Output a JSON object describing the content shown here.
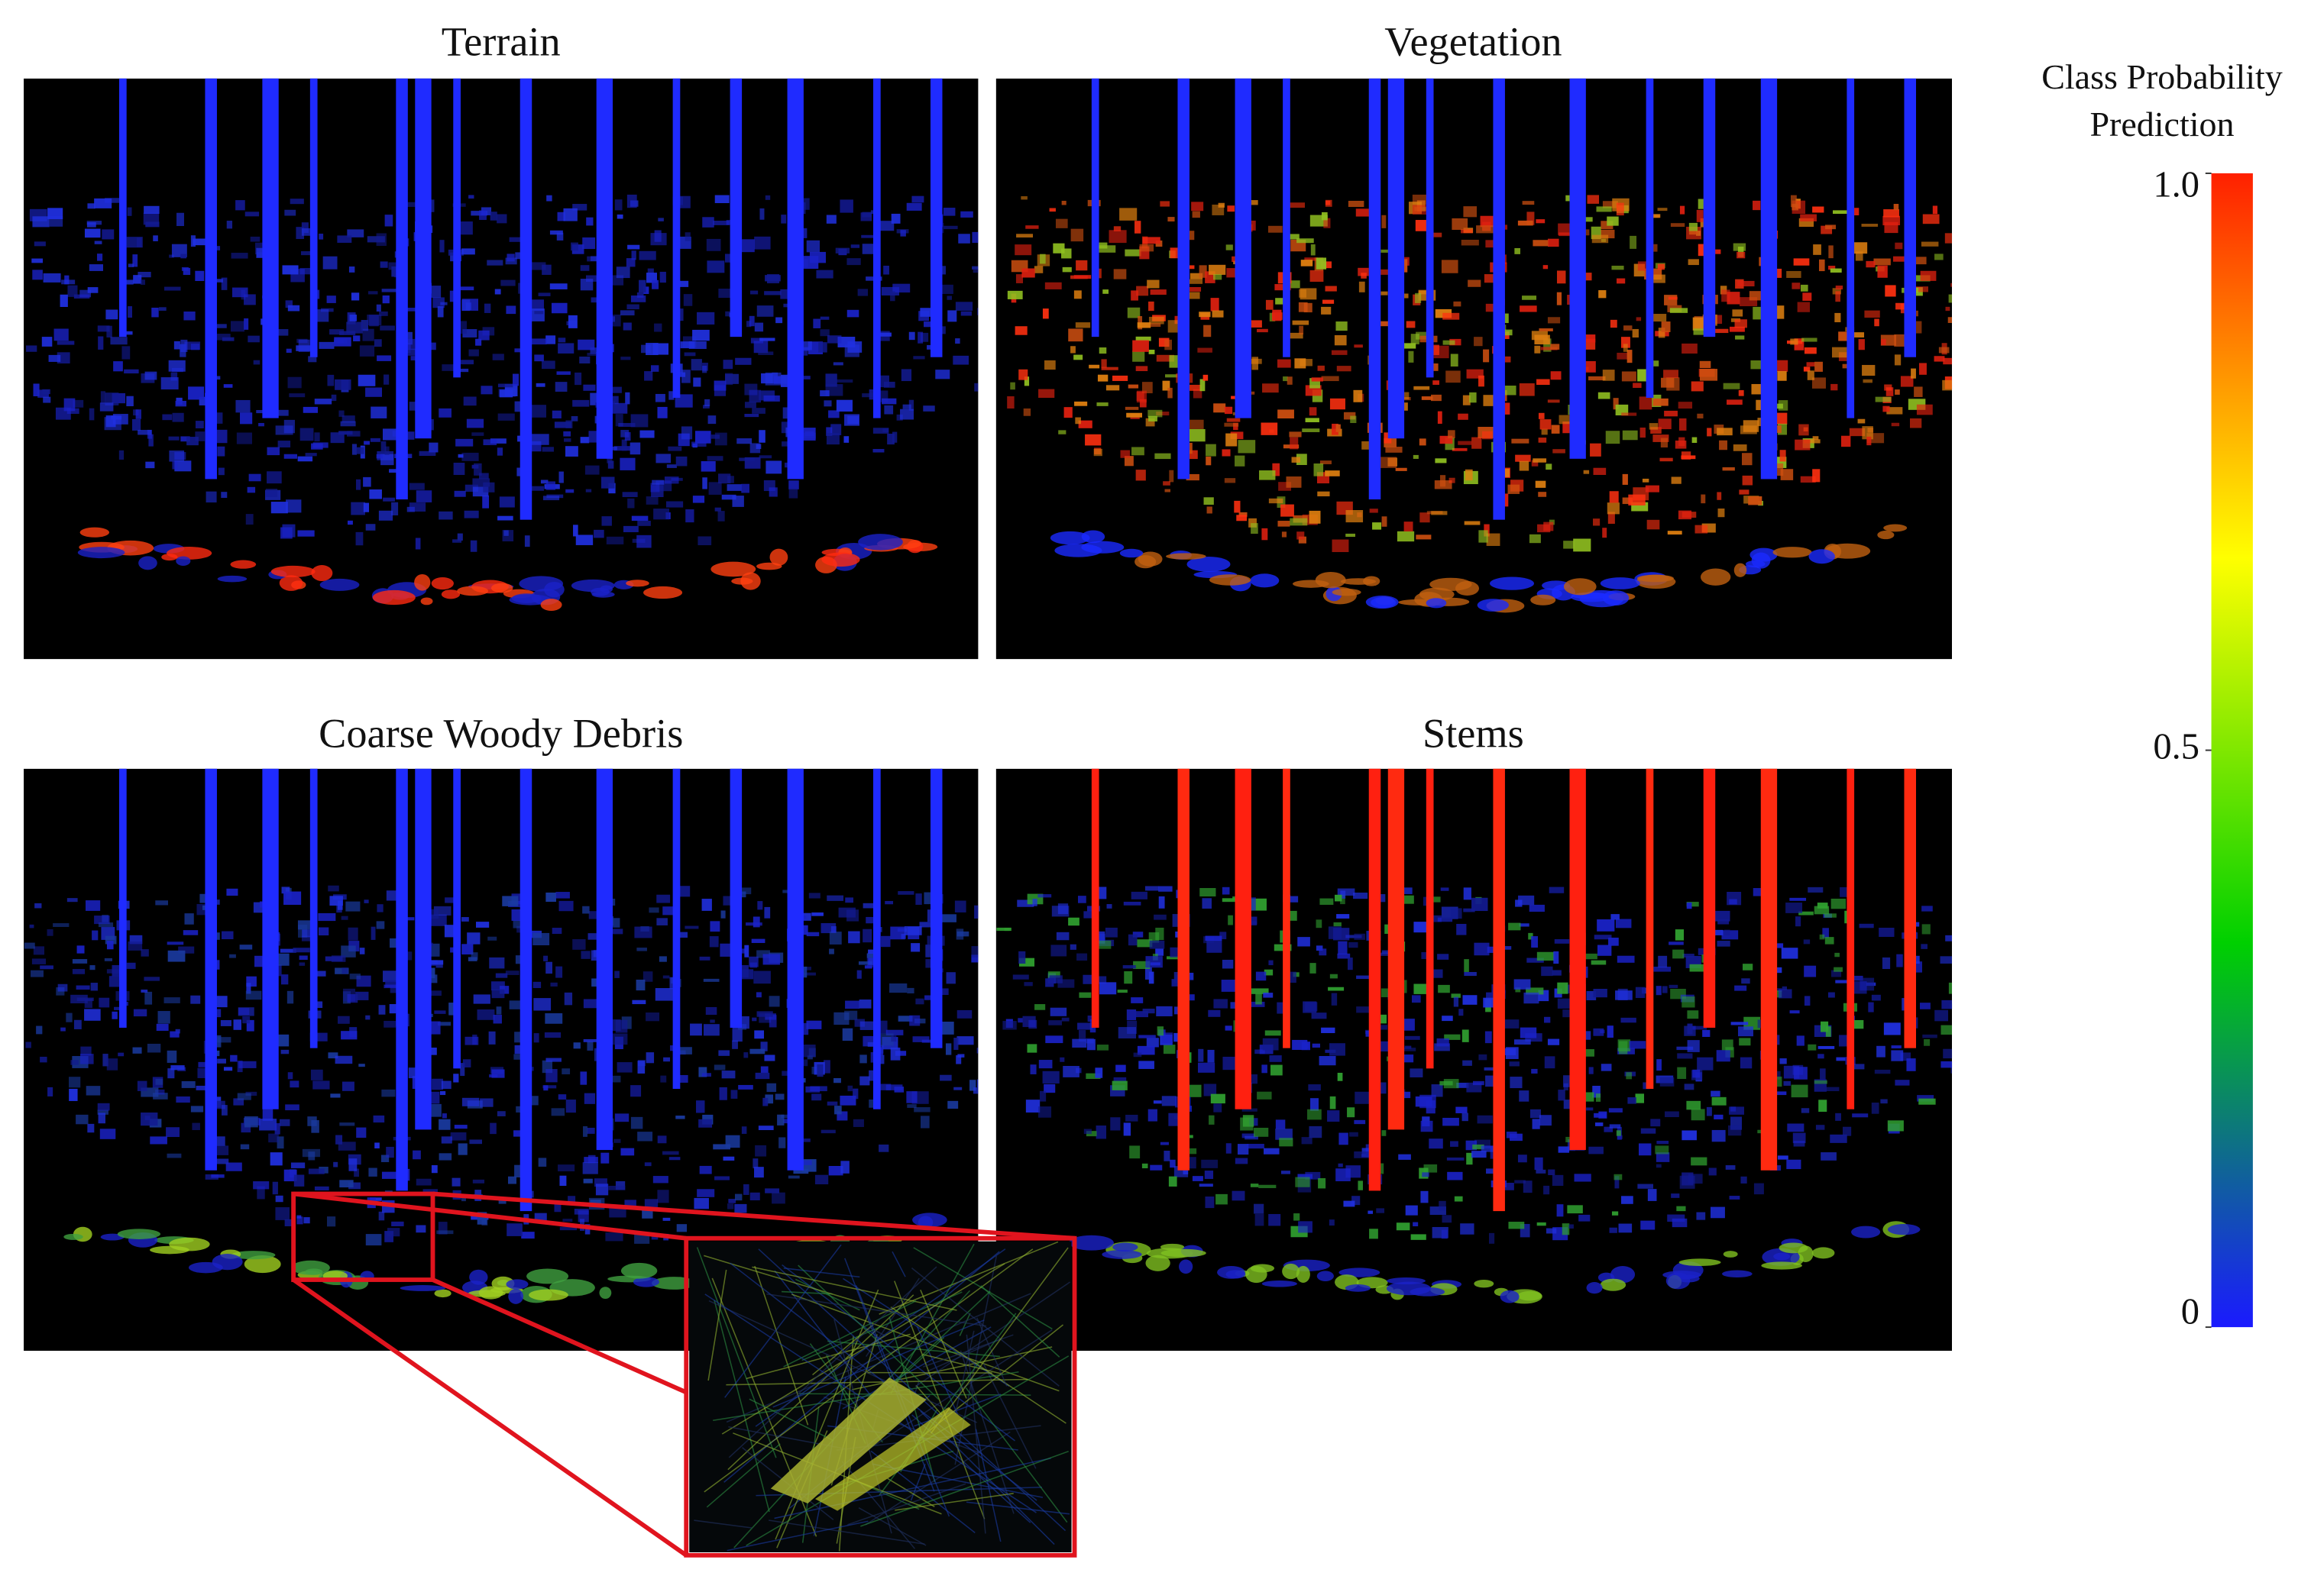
{
  "panels": [
    {
      "title": "Terrain"
    },
    {
      "title": "Vegetation"
    },
    {
      "title": "Coarse Woody Debris"
    },
    {
      "title": "Stems"
    }
  ],
  "colorbar": {
    "title": "Class Probability Prediction",
    "lim": [
      0,
      1
    ],
    "ticks": [
      {
        "value": 1,
        "label": "1.0"
      },
      0.5,
      0
    ],
    "colors": [
      "#1a1aff",
      "#00d000",
      "#ffff00",
      "#ff2000"
    ]
  }
}
